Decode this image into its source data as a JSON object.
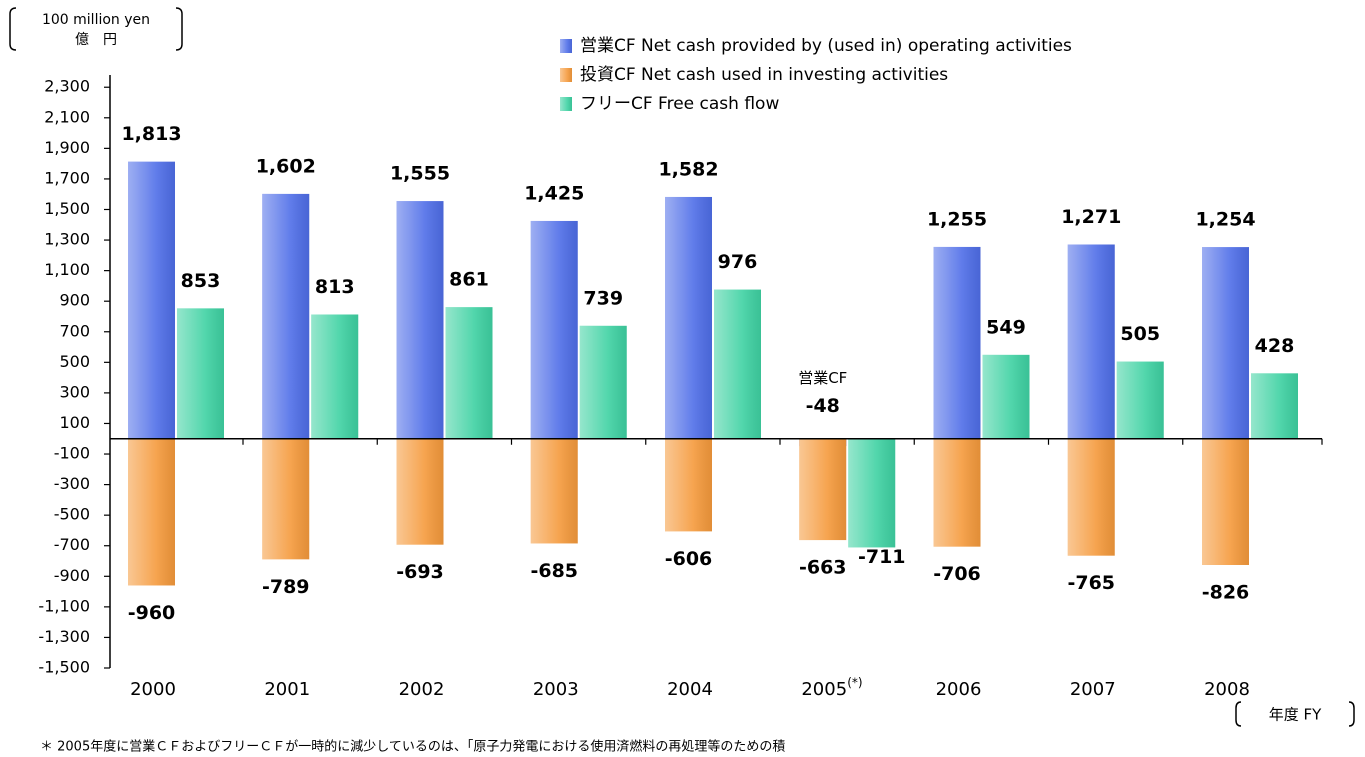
{
  "chart_data": {
    "type": "bar",
    "unit_label": [
      "100 million yen",
      "億　円"
    ],
    "x_label": "年度 FY",
    "categories": [
      "2000",
      "2001",
      "2002",
      "2003",
      "2004",
      "2005",
      "2006",
      "2007",
      "2008"
    ],
    "category_note": "(*)",
    "annotation": "営業CF",
    "footnote": "＊ 2005年度に営業ＣＦおよびフリーＣＦが一時的に減少しているのは、「原子力発電における使用済燃料の再処理等のための積",
    "series": [
      {
        "name": "営業CF  Net cash provided by (used in) operating activities",
        "color": "#4f6ee8",
        "values": [
          1813,
          1602,
          1555,
          1425,
          1582,
          -48,
          1255,
          1271,
          1254
        ],
        "value_labels": [
          "1,813",
          "1,602",
          "1,555",
          "1,425",
          "1,582",
          "-48",
          "1,255",
          "1,271",
          "1,254"
        ]
      },
      {
        "name": "投資CF  Net cash used in investing activities",
        "color": "#f59a3c",
        "values": [
          -960,
          -789,
          -693,
          -685,
          -606,
          -663,
          -706,
          -765,
          -826
        ],
        "value_labels": [
          "-960",
          "-789",
          "-693",
          "-685",
          "-606",
          "-663",
          "-706",
          "-765",
          "-826"
        ]
      },
      {
        "name": "フリーCF  Free cash flow",
        "color": "#3fd2a3",
        "values": [
          853,
          813,
          861,
          739,
          976,
          -711,
          549,
          505,
          428
        ],
        "value_labels": [
          "853",
          "813",
          "861",
          "739",
          "976",
          "-711",
          "549",
          "505",
          "428"
        ]
      }
    ],
    "ylim": [
      -1500,
      2380
    ],
    "yticks": [
      {
        "value": -1500,
        "label": "-1,500"
      },
      {
        "value": -1300,
        "label": "-1,300"
      },
      {
        "value": -1100,
        "label": "-1,100"
      },
      -900,
      -700,
      -500,
      -300,
      -100,
      100,
      300,
      500,
      700,
      900,
      {
        "value": 1100,
        "label": "1,100"
      },
      {
        "value": 1300,
        "label": "1,300"
      },
      {
        "value": 1500,
        "label": "1,500"
      },
      {
        "value": 1700,
        "label": "1,700"
      },
      {
        "value": 1900,
        "label": "1,900"
      },
      {
        "value": 2100,
        "label": "2,100"
      },
      {
        "value": 2300,
        "label": "2,300"
      }
    ]
  }
}
